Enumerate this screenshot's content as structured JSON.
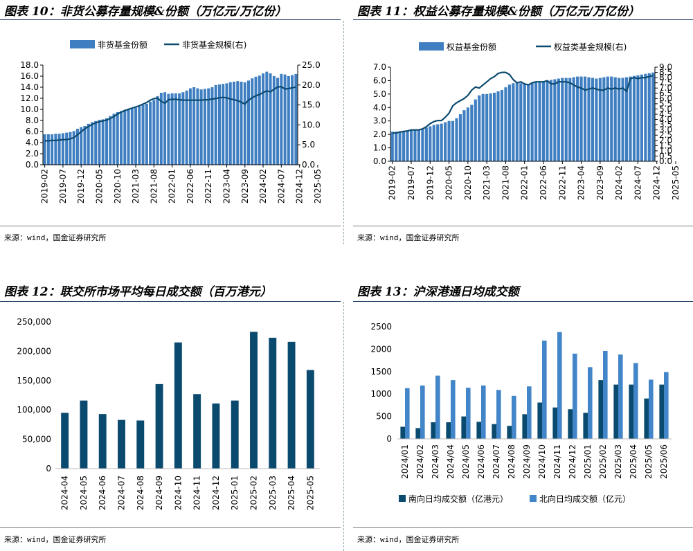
{
  "source_text": "来源：wind，国金证券研究所",
  "chart_data": [
    {
      "id": "fig10",
      "type": "bar+line",
      "title": "图表 10：非货公募存量规模&份额（万亿元/万亿份）",
      "legend": [
        "非货基金份额",
        "非货基金规模(右)"
      ],
      "colors": {
        "bar": "#3f7fc1",
        "line": "#0b4a6f"
      },
      "ylim_left": [
        0,
        18
      ],
      "yticks_left": [
        "0.0",
        "2.0",
        "4.0",
        "6.0",
        "8.0",
        "10.0",
        "12.0",
        "14.0",
        "16.0",
        "18.0"
      ],
      "ylim_right": [
        0,
        25
      ],
      "yticks_right": [
        "0.0",
        "5.0",
        "10.0",
        "15.0",
        "20.0",
        "25.0"
      ],
      "xticks": [
        "2019-02",
        "2019-07",
        "2019-12",
        "2020-05",
        "2020-10",
        "2021-03",
        "2021-08",
        "2022-01",
        "2022-06",
        "2022-11",
        "2023-04",
        "2023-09",
        "2024-02",
        "2024-07",
        "2024-12",
        "2025-05"
      ],
      "bars": [
        5.5,
        5.5,
        5.5,
        5.6,
        5.6,
        5.7,
        5.8,
        5.9,
        6.1,
        6.5,
        6.8,
        7.0,
        7.4,
        7.7,
        7.9,
        8.1,
        8.2,
        8.4,
        8.8,
        9.2,
        9.5,
        9.7,
        9.9,
        10.0,
        10.1,
        10.3,
        10.5,
        10.8,
        11.0,
        11.4,
        11.7,
        12.4,
        13.0,
        13.1,
        12.8,
        12.9,
        12.9,
        12.9,
        13.1,
        13.4,
        13.8,
        14.0,
        13.8,
        13.6,
        13.7,
        13.8,
        14.0,
        14.4,
        14.5,
        14.6,
        14.7,
        14.9,
        15.0,
        15.1,
        15.0,
        14.9,
        15.2,
        15.6,
        15.9,
        16.1,
        16.5,
        16.8,
        16.5,
        16.0,
        15.7,
        16.4,
        16.3,
        16.0,
        16.2,
        16.4
      ],
      "line": [
        6.0,
        6.0,
        6.1,
        6.1,
        6.2,
        6.3,
        6.3,
        6.5,
        6.8,
        7.5,
        8.3,
        9.0,
        9.6,
        10.1,
        10.5,
        10.8,
        11.0,
        11.2,
        11.6,
        12.1,
        12.7,
        13.2,
        13.6,
        13.9,
        14.2,
        14.5,
        14.8,
        15.2,
        15.6,
        16.2,
        16.6,
        16.7,
        15.9,
        15.4,
        16.3,
        16.4,
        16.4,
        16.3,
        16.2,
        16.2,
        16.2,
        16.2,
        16.2,
        16.2,
        16.3,
        16.3,
        16.5,
        16.6,
        16.8,
        16.9,
        16.8,
        16.5,
        16.3,
        16.1,
        15.7,
        15.2,
        16.2,
        16.8,
        17.3,
        17.6,
        18.1,
        18.5,
        18.3,
        18.9,
        19.5,
        19.6,
        19.0,
        19.1,
        19.3,
        19.5
      ]
    },
    {
      "id": "fig11",
      "type": "bar+line",
      "title": "图表 11：权益公募存量规模&份额（万亿元/万亿份）",
      "legend": [
        "权益基金份额",
        "权益类基金规模(右)"
      ],
      "colors": {
        "bar": "#3f7fc1",
        "line": "#0b4a6f"
      },
      "ylim_left": [
        0,
        7
      ],
      "yticks_left": [
        "0.0",
        "1.0",
        "2.0",
        "3.0",
        "4.0",
        "5.0",
        "6.0",
        "7.0"
      ],
      "ylim_right": [
        0,
        9
      ],
      "yticks_right": [
        "0.0",
        "0.5",
        "1.0",
        "1.5",
        "2.0",
        "2.5",
        "3.0",
        "3.5",
        "4.0",
        "4.5",
        "5.0",
        "5.5",
        "6.0",
        "6.5",
        "7.0",
        "7.5",
        "8.0",
        "8.5",
        "9.0"
      ],
      "xticks": [
        "2019-02",
        "2019-07",
        "2019-12",
        "2020-05",
        "2020-10",
        "2021-03",
        "2021-08",
        "2022-01",
        "2022-06",
        "2022-11",
        "2023-04",
        "2023-09",
        "2024-02",
        "2024-07",
        "2024-12",
        "2025-05"
      ],
      "bars": [
        2.2,
        2.2,
        2.2,
        2.2,
        2.3,
        2.3,
        2.3,
        2.35,
        2.4,
        2.5,
        2.6,
        2.7,
        2.75,
        2.8,
        2.9,
        3.0,
        3.0,
        3.2,
        3.5,
        3.8,
        4.0,
        4.2,
        4.6,
        4.9,
        5.0,
        5.0,
        5.05,
        5.1,
        5.2,
        5.3,
        5.5,
        5.7,
        5.8,
        5.85,
        5.8,
        5.75,
        5.75,
        5.8,
        5.85,
        5.9,
        5.95,
        6.0,
        6.05,
        6.1,
        6.15,
        6.2,
        6.2,
        6.2,
        6.25,
        6.3,
        6.3,
        6.3,
        6.25,
        6.2,
        6.15,
        6.2,
        6.25,
        6.3,
        6.3,
        6.25,
        6.2,
        6.2,
        6.25,
        6.3,
        6.35,
        6.4,
        6.45,
        6.5,
        6.55,
        6.6
      ],
      "line": [
        2.7,
        2.7,
        2.8,
        2.85,
        2.9,
        3.0,
        3.0,
        3.0,
        3.1,
        3.3,
        3.6,
        3.8,
        3.9,
        3.9,
        4.2,
        4.6,
        5.3,
        5.6,
        5.8,
        6.0,
        6.3,
        6.8,
        7.1,
        7.0,
        7.3,
        7.6,
        7.9,
        8.1,
        8.4,
        8.5,
        8.5,
        8.3,
        7.8,
        7.5,
        7.6,
        7.4,
        7.3,
        7.5,
        7.6,
        7.6,
        7.6,
        7.7,
        7.4,
        7.4,
        7.6,
        7.6,
        7.6,
        7.5,
        7.3,
        7.1,
        7.0,
        6.8,
        6.9,
        7.0,
        6.9,
        6.8,
        6.8,
        7.0,
        6.9,
        7.0,
        6.9,
        7.0,
        6.7,
        7.9,
        8.0,
        7.9,
        8.0,
        8.0,
        8.1,
        8.2
      ]
    },
    {
      "id": "fig12",
      "type": "bar",
      "title": "图表 12：联交所市场平均每日成交额（百万港元）",
      "colors": {
        "bar": "#0b4a6f"
      },
      "ylim": [
        0,
        250000
      ],
      "yticks": [
        "0",
        "50,000",
        "100,000",
        "150,000",
        "200,000",
        "250,000"
      ],
      "categories": [
        "2024-04",
        "2024-05",
        "2024-06",
        "2024-07",
        "2024-08",
        "2024-09",
        "2024-10",
        "2024-11",
        "2024-12",
        "2025-01",
        "2025-02",
        "2025-03",
        "2025-04",
        "2025-05"
      ],
      "values": [
        95000,
        116000,
        93000,
        83000,
        82000,
        144000,
        215000,
        127000,
        111000,
        116000,
        233000,
        223000,
        216000,
        168000
      ]
    },
    {
      "id": "fig13",
      "type": "bar",
      "title": "图表 13：沪深港通日均成交额",
      "legend": [
        "南向日均成交额（亿港元）",
        "北向日均成交额（亿元）"
      ],
      "colors": {
        "south": "#0b4a6f",
        "north": "#4285c8"
      },
      "ylim": [
        0,
        2500
      ],
      "yticks": [
        "0",
        "500",
        "1000",
        "1500",
        "2000",
        "2500"
      ],
      "categories": [
        "2024/01",
        "2024/02",
        "2024/03",
        "2024/04",
        "2024/05",
        "2024/06",
        "2024/07",
        "2024/08",
        "2024/09",
        "2024/10",
        "2024/11",
        "2024/12",
        "2025/01",
        "2025/02",
        "2025/03",
        "2025/04",
        "2025/05",
        "2025/06"
      ],
      "series": [
        {
          "name": "南向日均成交额（亿港元）",
          "values": [
            270,
            240,
            370,
            370,
            500,
            380,
            330,
            290,
            550,
            810,
            700,
            660,
            580,
            1310,
            1210,
            1210,
            900,
            1210
          ]
        },
        {
          "name": "北向日均成交额（亿元）",
          "values": [
            1130,
            1190,
            1410,
            1310,
            1140,
            1190,
            1090,
            960,
            1170,
            2190,
            2380,
            1900,
            1600,
            1960,
            1880,
            1690,
            1320,
            1490
          ]
        }
      ]
    }
  ]
}
